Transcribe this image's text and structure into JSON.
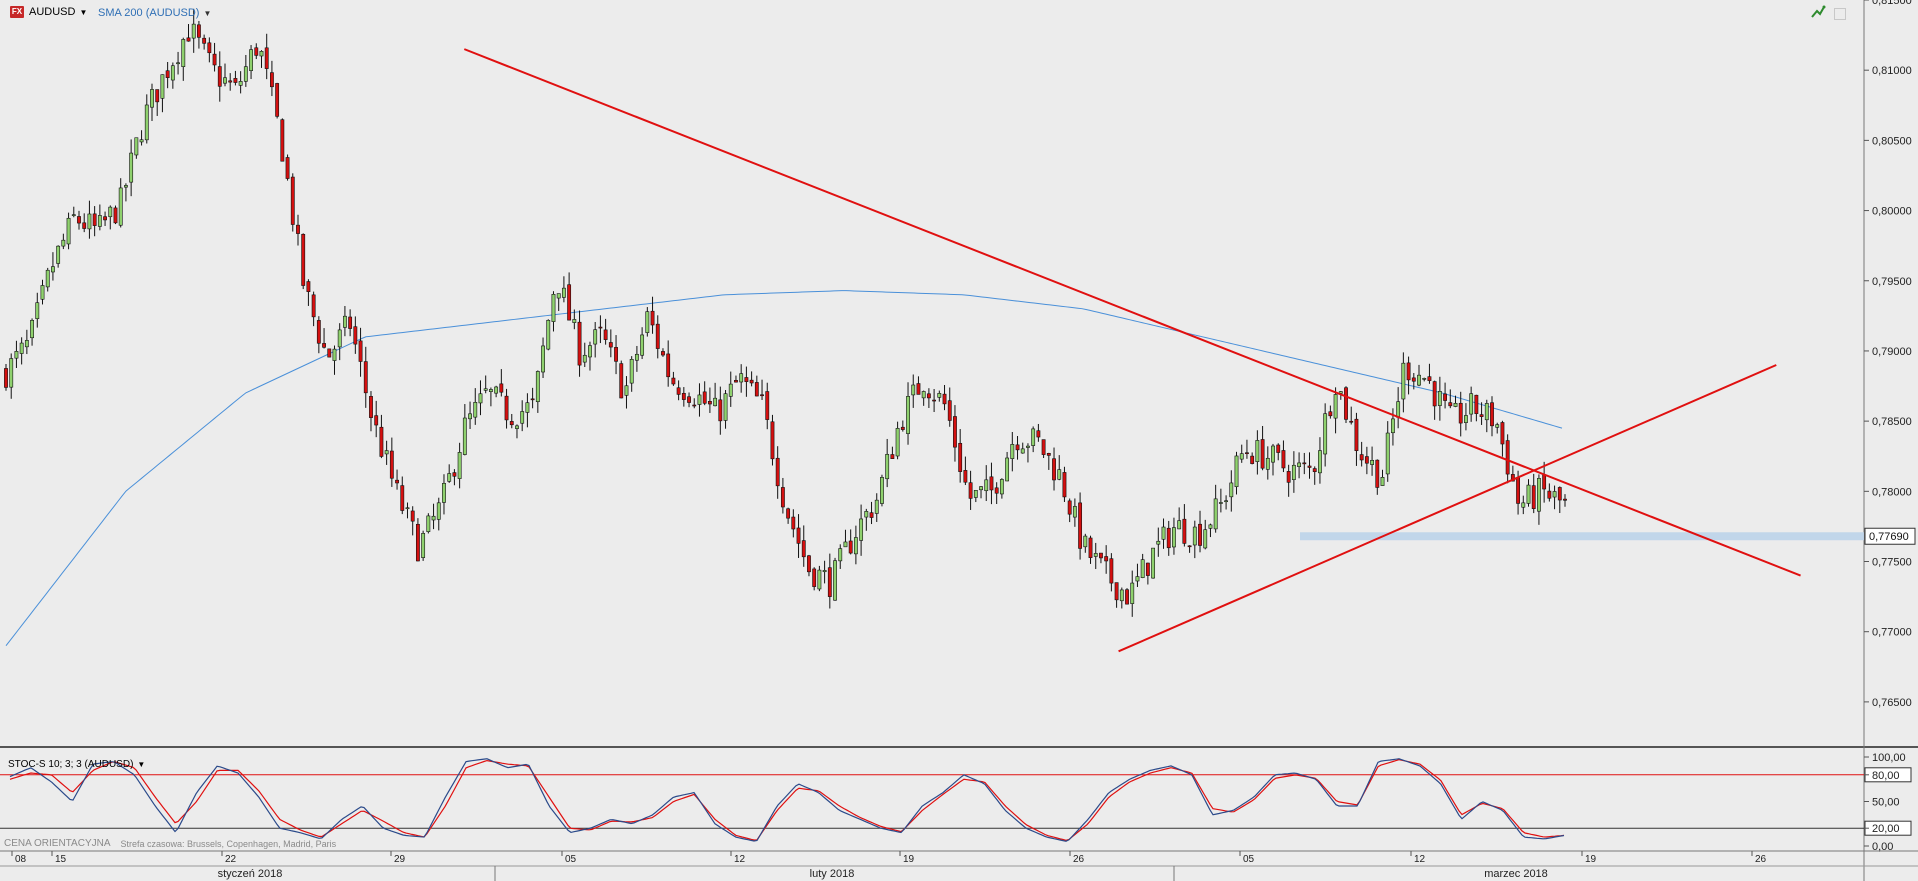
{
  "header": {
    "fx_badge": "FX",
    "symbol": "AUDUSD",
    "indicator": "SMA 200 (AUDUSD)",
    "oscillator": "STOC-S 10; 3; 3 (AUDUSD)",
    "footer_left": "CENA ORIENTACYJNA",
    "footer_tz": "Strefa czasowa: Brussels, Copenhagen, Madrid, Paris"
  },
  "colors": {
    "background": "#ececec",
    "bull": "#8fd16e",
    "bear": "#d41010",
    "sma": "#4a90d9",
    "trendline": "#e01010",
    "stoch_k": "#2b4a8a",
    "stoch_d": "#e01010"
  },
  "chart_data": [
    {
      "type": "candlestick",
      "title": "AUDUSD",
      "y_ticks": [
        "0,81500",
        "0,81000",
        "0,80500",
        "0,80000",
        "0,79500",
        "0,79000",
        "0,78500",
        "0,78000",
        "0,77500",
        "0,77000",
        "0,76500"
      ],
      "ylim": [
        0.762,
        0.815
      ],
      "current_price_label": "0,77690",
      "x_date_labels": [
        "08",
        "15",
        "22",
        "29",
        "05",
        "12",
        "19",
        "26",
        "05",
        "12",
        "19",
        "26"
      ],
      "month_labels": [
        "styczeń 2018",
        "luty 2018",
        "marzec 2018"
      ],
      "candle_count": 300,
      "closes_approx": [
        0.7885,
        0.7905,
        0.796,
        0.7995,
        0.7985,
        0.8005,
        0.8065,
        0.81,
        0.813,
        0.81,
        0.8085,
        0.812,
        0.805,
        0.7945,
        0.7895,
        0.792,
        0.785,
        0.78,
        0.776,
        0.779,
        0.7845,
        0.787,
        0.7855,
        0.786,
        0.7955,
        0.79,
        0.791,
        0.787,
        0.7925,
        0.788,
        0.787,
        0.7855,
        0.788,
        0.786,
        0.779,
        0.7745,
        0.7735,
        0.777,
        0.7795,
        0.785,
        0.788,
        0.786,
        0.7795,
        0.78,
        0.784,
        0.7835,
        0.781,
        0.776,
        0.774,
        0.7725,
        0.7755,
        0.7775,
        0.777,
        0.779,
        0.783,
        0.7825,
        0.7815,
        0.7815,
        0.788,
        0.783,
        0.781,
        0.789,
        0.788,
        0.785,
        0.786,
        0.785,
        0.779,
        0.78,
        0.779
      ],
      "sma200_approx": [
        0.769,
        0.78,
        0.787,
        0.791,
        0.792,
        0.793,
        0.794,
        0.7943,
        0.794,
        0.793,
        0.791,
        0.789,
        0.787,
        0.7845
      ],
      "trendlines": [
        {
          "from": [
            "2018-02-01",
            0.8115
          ],
          "to": [
            "2018-03-28",
            0.774
          ]
        },
        {
          "from": [
            "2018-02-28",
            0.7686
          ],
          "to": [
            "2018-03-27",
            0.789
          ]
        }
      ],
      "support_level": 0.7768
    },
    {
      "type": "line",
      "title": "STOC-S 10; 3; 3 (AUDUSD)",
      "y_ticks": [
        "100,00",
        "80,00",
        "50,00",
        "20,00",
        "0,00"
      ],
      "ylim": [
        0,
        100
      ],
      "levels": [
        80,
        20
      ],
      "highlighted_levels": [
        "80,00",
        "20,00"
      ],
      "series": [
        {
          "values": [
            78,
            88,
            72,
            50,
            92,
            95,
            80,
            45,
            15,
            60,
            90,
            82,
            55,
            20,
            15,
            8,
            30,
            45,
            20,
            12,
            10,
            55,
            95,
            98,
            88,
            92,
            45,
            15,
            20,
            30,
            25,
            35,
            55,
            60,
            25,
            10,
            5,
            45,
            70,
            60,
            40,
            30,
            20,
            15,
            45,
            60,
            80,
            70,
            40,
            20,
            10,
            5,
            30,
            60,
            75,
            85,
            90,
            80,
            35,
            40,
            55,
            80,
            82,
            75,
            45,
            45,
            95,
            98,
            90,
            70,
            30,
            50,
            40,
            10,
            8,
            12
          ]
        },
        {
          "values": [
            75,
            82,
            80,
            60,
            85,
            95,
            88,
            55,
            25,
            50,
            85,
            85,
            62,
            30,
            18,
            10,
            25,
            40,
            28,
            15,
            10,
            45,
            88,
            96,
            92,
            90,
            55,
            20,
            18,
            28,
            27,
            32,
            50,
            58,
            30,
            12,
            6,
            40,
            65,
            62,
            45,
            32,
            22,
            16,
            40,
            58,
            75,
            72,
            45,
            24,
            12,
            6,
            25,
            55,
            72,
            82,
            88,
            82,
            42,
            38,
            52,
            76,
            80,
            76,
            50,
            46,
            90,
            97,
            92,
            74,
            35,
            48,
            42,
            15,
            10,
            12
          ]
        }
      ]
    }
  ]
}
